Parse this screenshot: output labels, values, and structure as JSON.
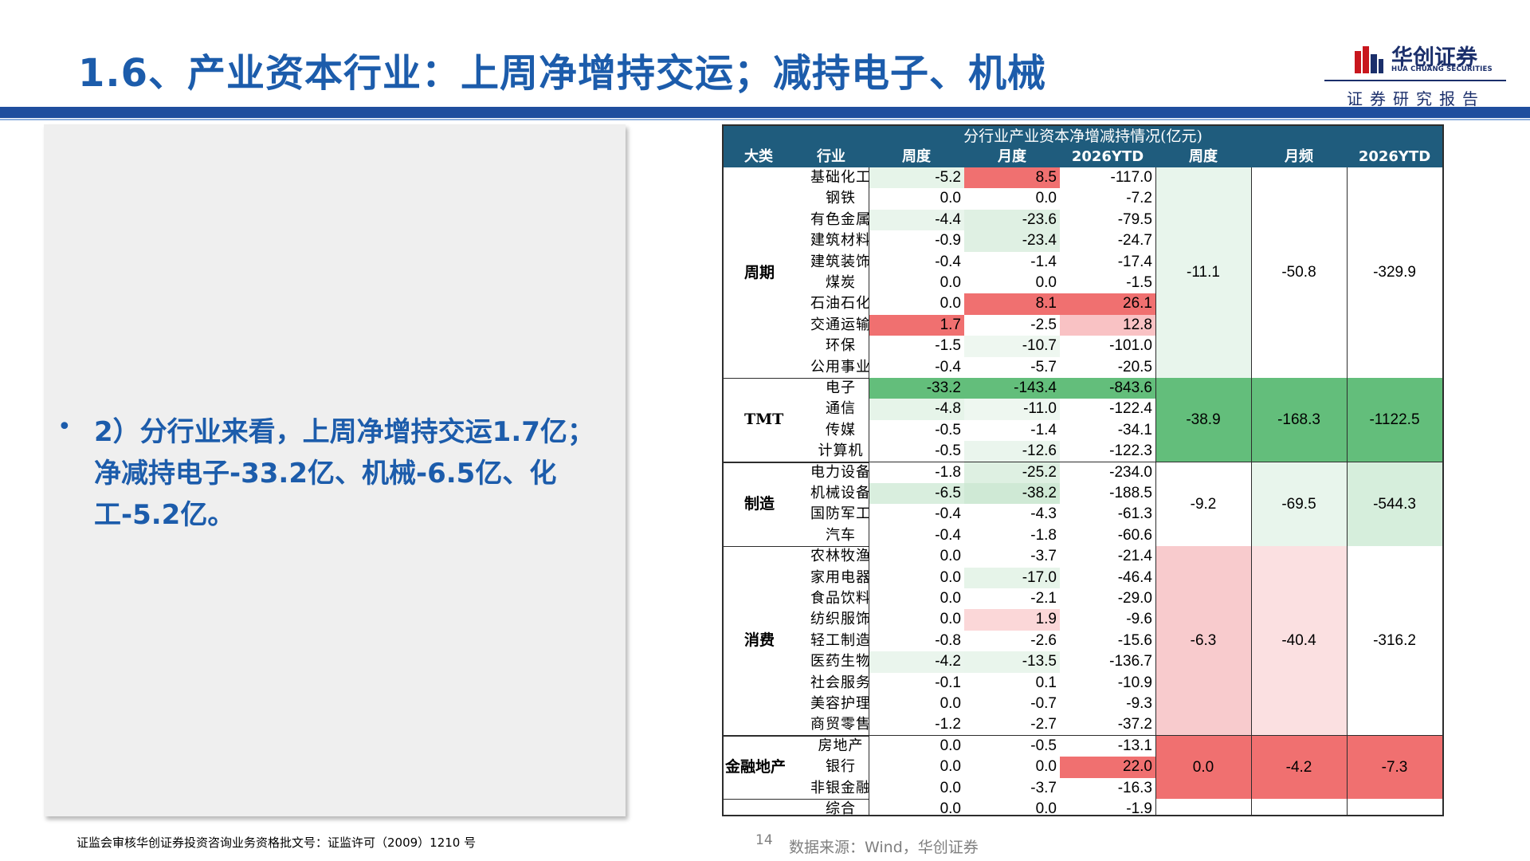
{
  "page": {
    "title": "1.6、产业资本行业：上周净增持交运；减持电子、机械",
    "page_number": "14",
    "footer_license": "证监会审核华创证券投资咨询业务资格批文号：证监许可（2009）1210 号",
    "source": "数据来源：Wind，华创证券"
  },
  "logo": {
    "name_cn": "华创证券",
    "name_en": "HUA CHUANG SECURITIES",
    "tagline": "证券研究报告",
    "colors": {
      "red": "#c8161d",
      "navy": "#1b2f6b"
    }
  },
  "bullet": {
    "text": "2）分行业来看，上周净增持交运1.7亿；净减持电子-33.2亿、机械-6.5亿、化工-5.2亿。"
  },
  "table": {
    "title": "分行业产业资本净增减持情况(亿元)",
    "headers": [
      "大类",
      "行业",
      "周度",
      "月度",
      "2026YTD",
      "周度",
      "月频",
      "2026YTD"
    ],
    "header_color": "#1f5c7d",
    "groups": [
      {
        "category": "周期",
        "summary": [
          "-11.1",
          "-50.8",
          "-329.9"
        ],
        "summary_colors": [
          "#e8f5ec",
          "#ffffff",
          "#ffffff"
        ],
        "rows": [
          {
            "industry": "基础化工",
            "week": "-5.2",
            "month": "8.5",
            "ytd": "-117.0",
            "colors": [
              "#e6f4e9",
              "#f07070",
              "#ffffff"
            ]
          },
          {
            "industry": "钢铁",
            "week": "0.0",
            "month": "0.0",
            "ytd": "-7.2",
            "colors": [
              "#ffffff",
              "#ffffff",
              "#ffffff"
            ]
          },
          {
            "industry": "有色金属",
            "week": "-4.4",
            "month": "-23.6",
            "ytd": "-79.5",
            "colors": [
              "#e9f5ec",
              "#dff0e3",
              "#ffffff"
            ]
          },
          {
            "industry": "建筑材料",
            "week": "-0.9",
            "month": "-23.4",
            "ytd": "-24.7",
            "colors": [
              "#ffffff",
              "#dff0e3",
              "#ffffff"
            ]
          },
          {
            "industry": "建筑装饰",
            "week": "-0.4",
            "month": "-1.4",
            "ytd": "-17.4",
            "colors": [
              "#ffffff",
              "#ffffff",
              "#ffffff"
            ]
          },
          {
            "industry": "煤炭",
            "week": "0.0",
            "month": "0.0",
            "ytd": "-1.5",
            "colors": [
              "#ffffff",
              "#ffffff",
              "#ffffff"
            ]
          },
          {
            "industry": "石油石化",
            "week": "0.0",
            "month": "8.1",
            "ytd": "26.1",
            "colors": [
              "#ffffff",
              "#f07070",
              "#f07070"
            ]
          },
          {
            "industry": "交通运输",
            "week": "1.7",
            "month": "-2.5",
            "ytd": "12.8",
            "colors": [
              "#f07070",
              "#ffffff",
              "#f9c2c4"
            ]
          },
          {
            "industry": "环保",
            "week": "-1.5",
            "month": "-10.7",
            "ytd": "-101.0",
            "colors": [
              "#ffffff",
              "#eef7f0",
              "#ffffff"
            ]
          },
          {
            "industry": "公用事业",
            "week": "-0.4",
            "month": "-5.7",
            "ytd": "-20.5",
            "colors": [
              "#ffffff",
              "#ffffff",
              "#ffffff"
            ]
          }
        ]
      },
      {
        "category": "TMT",
        "summary": [
          "-38.9",
          "-168.3",
          "-1122.5"
        ],
        "summary_colors": [
          "#63be7b",
          "#63be7b",
          "#63be7b"
        ],
        "rows": [
          {
            "industry": "电子",
            "week": "-33.2",
            "month": "-143.4",
            "ytd": "-843.6",
            "colors": [
              "#63be7b",
              "#63be7b",
              "#63be7b"
            ]
          },
          {
            "industry": "通信",
            "week": "-4.8",
            "month": "-11.0",
            "ytd": "-122.4",
            "colors": [
              "#e6f4e9",
              "#eef7f0",
              "#ffffff"
            ]
          },
          {
            "industry": "传媒",
            "week": "-0.5",
            "month": "-1.4",
            "ytd": "-34.1",
            "colors": [
              "#ffffff",
              "#ffffff",
              "#ffffff"
            ]
          },
          {
            "industry": "计算机",
            "week": "-0.5",
            "month": "-12.6",
            "ytd": "-122.3",
            "colors": [
              "#ffffff",
              "#eaf5ed",
              "#ffffff"
            ]
          }
        ]
      },
      {
        "category": "制造",
        "summary": [
          "-9.2",
          "-69.5",
          "-544.3"
        ],
        "summary_colors": [
          "#ffffff",
          "#e8f5ec",
          "#d6eedc"
        ],
        "rows": [
          {
            "industry": "电力设备",
            "week": "-1.8",
            "month": "-25.2",
            "ytd": "-234.0",
            "colors": [
              "#ffffff",
              "#def0e2",
              "#ffffff"
            ]
          },
          {
            "industry": "机械设备",
            "week": "-6.5",
            "month": "-38.2",
            "ytd": "-188.5",
            "colors": [
              "#d9eede",
              "#cfe9d5",
              "#ffffff"
            ]
          },
          {
            "industry": "国防军工",
            "week": "-0.4",
            "month": "-4.3",
            "ytd": "-61.3",
            "colors": [
              "#ffffff",
              "#ffffff",
              "#ffffff"
            ]
          },
          {
            "industry": "汽车",
            "week": "-0.4",
            "month": "-1.8",
            "ytd": "-60.6",
            "colors": [
              "#ffffff",
              "#ffffff",
              "#ffffff"
            ]
          }
        ]
      },
      {
        "category": "消费",
        "summary": [
          "-6.3",
          "-40.4",
          "-316.2"
        ],
        "summary_colors": [
          "#f8cbcd",
          "#fbe0e1",
          "#ffffff"
        ],
        "rows": [
          {
            "industry": "农林牧渔",
            "week": "0.0",
            "month": "-3.7",
            "ytd": "-21.4",
            "colors": [
              "#ffffff",
              "#ffffff",
              "#ffffff"
            ]
          },
          {
            "industry": "家用电器",
            "week": "0.0",
            "month": "-17.0",
            "ytd": "-46.4",
            "colors": [
              "#ffffff",
              "#e6f4e9",
              "#ffffff"
            ]
          },
          {
            "industry": "食品饮料",
            "week": "0.0",
            "month": "-2.1",
            "ytd": "-29.0",
            "colors": [
              "#ffffff",
              "#ffffff",
              "#ffffff"
            ]
          },
          {
            "industry": "纺织服饰",
            "week": "0.0",
            "month": "1.9",
            "ytd": "-9.6",
            "colors": [
              "#ffffff",
              "#fbd7d8",
              "#ffffff"
            ]
          },
          {
            "industry": "轻工制造",
            "week": "-0.8",
            "month": "-2.6",
            "ytd": "-15.6",
            "colors": [
              "#ffffff",
              "#ffffff",
              "#ffffff"
            ]
          },
          {
            "industry": "医药生物",
            "week": "-4.2",
            "month": "-13.5",
            "ytd": "-136.7",
            "colors": [
              "#eaf5ed",
              "#e9f5ec",
              "#ffffff"
            ]
          },
          {
            "industry": "社会服务",
            "week": "-0.1",
            "month": "0.1",
            "ytd": "-10.9",
            "colors": [
              "#ffffff",
              "#ffffff",
              "#ffffff"
            ]
          },
          {
            "industry": "美容护理",
            "week": "0.0",
            "month": "-0.7",
            "ytd": "-9.3",
            "colors": [
              "#ffffff",
              "#ffffff",
              "#ffffff"
            ]
          },
          {
            "industry": "商贸零售",
            "week": "-1.2",
            "month": "-2.7",
            "ytd": "-37.2",
            "colors": [
              "#ffffff",
              "#ffffff",
              "#ffffff"
            ]
          }
        ]
      },
      {
        "category": "金融地产",
        "summary": [
          "0.0",
          "-4.2",
          "-7.3"
        ],
        "summary_colors": [
          "#f07070",
          "#f07070",
          "#f07070"
        ],
        "rows": [
          {
            "industry": "房地产",
            "week": "0.0",
            "month": "-0.5",
            "ytd": "-13.1",
            "colors": [
              "#ffffff",
              "#ffffff",
              "#ffffff"
            ]
          },
          {
            "industry": "银行",
            "week": "0.0",
            "month": "0.0",
            "ytd": "22.0",
            "colors": [
              "#ffffff",
              "#ffffff",
              "#f07070"
            ]
          },
          {
            "industry": "非银金融",
            "week": "0.0",
            "month": "-3.7",
            "ytd": "-16.3",
            "colors": [
              "#ffffff",
              "#ffffff",
              "#ffffff"
            ]
          }
        ]
      },
      {
        "category": "",
        "summary": [
          "",
          "",
          ""
        ],
        "summary_colors": [
          "#ffffff",
          "#ffffff",
          "#ffffff"
        ],
        "rows": [
          {
            "industry": "综合",
            "week": "0.0",
            "month": "0.0",
            "ytd": "-1.9",
            "colors": [
              "#ffffff",
              "#ffffff",
              "#ffffff"
            ]
          }
        ]
      }
    ]
  }
}
